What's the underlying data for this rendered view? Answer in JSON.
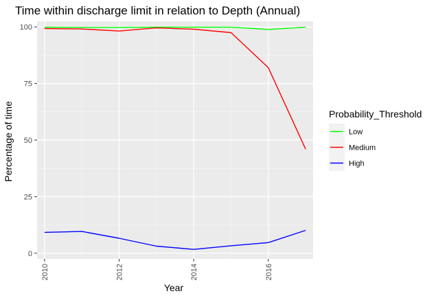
{
  "chart_data": {
    "type": "line",
    "title": "Time within discharge limit in relation to Depth (Annual)",
    "xlabel": "Year",
    "ylabel": "Percentage of time",
    "x": [
      2010,
      2011,
      2012,
      2013,
      2014,
      2015,
      2016,
      2017
    ],
    "xlim": [
      2009.8,
      2017.2
    ],
    "ylim": [
      -2.5,
      102.5
    ],
    "x_ticks": [
      2010,
      2012,
      2014,
      2016
    ],
    "y_ticks": [
      0,
      25,
      50,
      75,
      100
    ],
    "grid": true,
    "legend": {
      "title": "Probability_Threshold",
      "position": "right"
    },
    "series": [
      {
        "name": "Low",
        "color": "#00ff00",
        "values": [
          99.9,
          99.8,
          99.8,
          99.9,
          99.9,
          99.9,
          98.9,
          99.9
        ]
      },
      {
        "name": "Medium",
        "color": "#ff0000",
        "values": [
          99.3,
          99.1,
          98.2,
          99.6,
          99.0,
          97.5,
          82.0,
          46.0
        ]
      },
      {
        "name": "High",
        "color": "#0000ff",
        "values": [
          9.2,
          9.6,
          6.6,
          3.1,
          1.7,
          3.3,
          4.7,
          10.1
        ]
      }
    ]
  }
}
